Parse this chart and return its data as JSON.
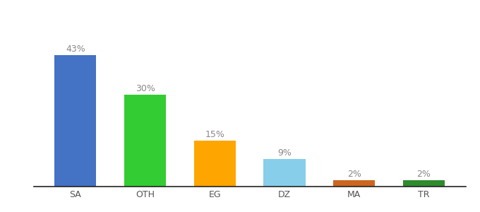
{
  "categories": [
    "SA",
    "OTH",
    "EG",
    "DZ",
    "MA",
    "TR"
  ],
  "values": [
    43,
    30,
    15,
    9,
    2,
    2
  ],
  "labels": [
    "43%",
    "30%",
    "15%",
    "9%",
    "2%",
    "2%"
  ],
  "bar_colors": [
    "#4472C4",
    "#33CC33",
    "#FFA500",
    "#87CEEB",
    "#CC6622",
    "#2E8B2E"
  ],
  "background_color": "#ffffff",
  "label_fontsize": 9,
  "tick_fontsize": 9,
  "ylim": [
    0,
    50
  ]
}
